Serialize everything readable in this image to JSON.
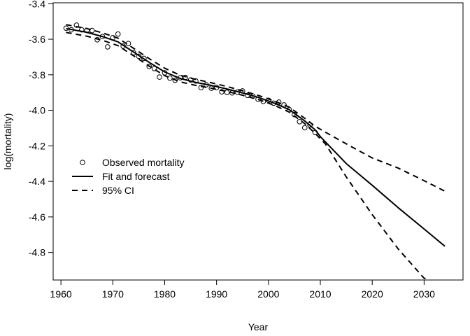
{
  "chart_data": {
    "type": "line",
    "title": "",
    "xlabel": "Year",
    "ylabel": "log(mortality)",
    "xlim": [
      1958.5,
      2037.5
    ],
    "ylim": [
      -4.955,
      -3.395
    ],
    "x_ticks": [
      1960,
      1970,
      1980,
      1990,
      2000,
      2010,
      2020,
      2030
    ],
    "x_tick_labels": [
      "1960",
      "1970",
      "1980",
      "1990",
      "2000",
      "2010",
      "2020",
      "2030"
    ],
    "y_ticks": [
      -3.4,
      -3.6,
      -3.8,
      -4.0,
      -4.2,
      -4.4,
      -4.6,
      -4.8
    ],
    "y_tick_labels": [
      "-3.4",
      "-3.6",
      "-3.8",
      "-4.0",
      "-4.2",
      "-4.4",
      "-4.6",
      "-4.8"
    ],
    "grid": false,
    "legend": {
      "placement": "middle-left",
      "entries": [
        {
          "label": "Observed mortality",
          "marker": "circle"
        },
        {
          "label": "Fit and forecast",
          "line": "solid"
        },
        {
          "label": "95% CI",
          "line": "dashed"
        }
      ]
    },
    "series": [
      {
        "name": "Observed mortality",
        "style": "points",
        "points": [
          [
            1961,
            -3.538
          ],
          [
            1962,
            -3.547
          ],
          [
            1963,
            -3.521
          ],
          [
            1964,
            -3.547
          ],
          [
            1965,
            -3.551
          ],
          [
            1966,
            -3.551
          ],
          [
            1967,
            -3.603
          ],
          [
            1968,
            -3.585
          ],
          [
            1969,
            -3.643
          ],
          [
            1970,
            -3.591
          ],
          [
            1971,
            -3.571
          ],
          [
            1972,
            -3.639
          ],
          [
            1973,
            -3.624
          ],
          [
            1974,
            -3.676
          ],
          [
            1975,
            -3.696
          ],
          [
            1976,
            -3.708
          ],
          [
            1977,
            -3.753
          ],
          [
            1978,
            -3.765
          ],
          [
            1979,
            -3.813
          ],
          [
            1980,
            -3.789
          ],
          [
            1981,
            -3.819
          ],
          [
            1982,
            -3.831
          ],
          [
            1983,
            -3.817
          ],
          [
            1984,
            -3.815
          ],
          [
            1985,
            -3.829
          ],
          [
            1986,
            -3.835
          ],
          [
            1987,
            -3.872
          ],
          [
            1988,
            -3.856
          ],
          [
            1989,
            -3.876
          ],
          [
            1990,
            -3.872
          ],
          [
            1991,
            -3.896
          ],
          [
            1992,
            -3.899
          ],
          [
            1993,
            -3.902
          ],
          [
            1994,
            -3.898
          ],
          [
            1995,
            -3.891
          ],
          [
            1996,
            -3.916
          ],
          [
            1997,
            -3.92
          ],
          [
            1998,
            -3.938
          ],
          [
            1999,
            -3.95
          ],
          [
            2000,
            -3.944
          ],
          [
            2001,
            -3.96
          ],
          [
            2002,
            -3.954
          ],
          [
            2003,
            -3.97
          ],
          [
            2004,
            -3.996
          ],
          [
            2005,
            -4.024
          ],
          [
            2006,
            -4.064
          ],
          [
            2007,
            -4.098
          ],
          [
            2008,
            -4.082
          ],
          [
            2009,
            -4.125
          ]
        ]
      },
      {
        "name": "Fit and forecast",
        "style": "solid",
        "points": [
          [
            1961,
            -3.54
          ],
          [
            1965,
            -3.561
          ],
          [
            1968,
            -3.585
          ],
          [
            1971,
            -3.615
          ],
          [
            1974,
            -3.672
          ],
          [
            1977,
            -3.73
          ],
          [
            1980,
            -3.784
          ],
          [
            1983,
            -3.821
          ],
          [
            1986,
            -3.843
          ],
          [
            1989,
            -3.86
          ],
          [
            1992,
            -3.88
          ],
          [
            1995,
            -3.902
          ],
          [
            1998,
            -3.927
          ],
          [
            2001,
            -3.958
          ],
          [
            2004,
            -3.996
          ],
          [
            2007,
            -4.06
          ],
          [
            2009,
            -4.11
          ],
          [
            2010,
            -4.148
          ],
          [
            2015,
            -4.3
          ],
          [
            2020,
            -4.422
          ],
          [
            2025,
            -4.548
          ],
          [
            2030,
            -4.668
          ],
          [
            2034,
            -4.765
          ]
        ]
      },
      {
        "name": "95% CI (upper)",
        "style": "dashed",
        "points": [
          [
            1961,
            -3.518
          ],
          [
            1965,
            -3.54
          ],
          [
            1968,
            -3.564
          ],
          [
            1971,
            -3.594
          ],
          [
            1974,
            -3.651
          ],
          [
            1977,
            -3.709
          ],
          [
            1980,
            -3.763
          ],
          [
            1983,
            -3.803
          ],
          [
            1986,
            -3.826
          ],
          [
            1989,
            -3.845
          ],
          [
            1992,
            -3.866
          ],
          [
            1995,
            -3.89
          ],
          [
            1998,
            -3.916
          ],
          [
            2001,
            -3.946
          ],
          [
            2004,
            -3.982
          ],
          [
            2007,
            -4.045
          ],
          [
            2009,
            -4.09
          ],
          [
            2012,
            -4.14
          ],
          [
            2016,
            -4.205
          ],
          [
            2020,
            -4.268
          ],
          [
            2025,
            -4.325
          ],
          [
            2030,
            -4.396
          ],
          [
            2034,
            -4.455
          ]
        ]
      },
      {
        "name": "95% CI (lower)",
        "style": "dashed",
        "points": [
          [
            1961,
            -3.562
          ],
          [
            1965,
            -3.583
          ],
          [
            1968,
            -3.606
          ],
          [
            1971,
            -3.636
          ],
          [
            1974,
            -3.693
          ],
          [
            1977,
            -3.751
          ],
          [
            1980,
            -3.805
          ],
          [
            1983,
            -3.84
          ],
          [
            1986,
            -3.86
          ],
          [
            1989,
            -3.876
          ],
          [
            1992,
            -3.894
          ],
          [
            1995,
            -3.915
          ],
          [
            1998,
            -3.939
          ],
          [
            2001,
            -3.97
          ],
          [
            2004,
            -4.01
          ],
          [
            2007,
            -4.075
          ],
          [
            2009,
            -4.13
          ],
          [
            2011,
            -4.19
          ],
          [
            2015,
            -4.375
          ],
          [
            2020,
            -4.587
          ],
          [
            2025,
            -4.78
          ],
          [
            2030,
            -4.945
          ],
          [
            2031,
            -4.955
          ]
        ]
      }
    ]
  }
}
